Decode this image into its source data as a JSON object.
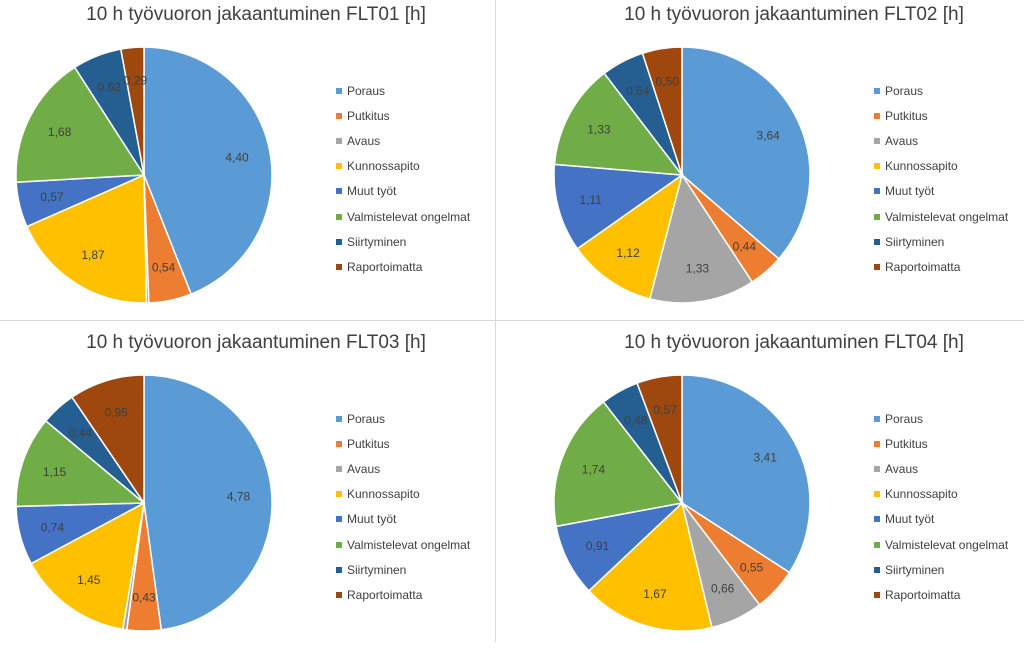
{
  "colors": {
    "slices": [
      "#5b9bd5",
      "#ed7d31",
      "#a5a5a5",
      "#ffc000",
      "#4472c4",
      "#70ad47",
      "#255e91",
      "#9e480e"
    ],
    "label_text": "#404040",
    "divider": "#d9d9d9"
  },
  "legend_labels": [
    "Poraus",
    "Putkitus",
    "Avaus",
    "Kunnossapito",
    "Muut työt",
    "Valmistelevat ongelmat",
    "Siirtyminen",
    "Raportoimatta"
  ],
  "chart_data": [
    {
      "type": "pie",
      "title": "10 h työvuoron jakaantuminen FLT01 [h]",
      "categories": [
        "Poraus",
        "Putkitus",
        "Avaus",
        "Kunnossapito",
        "Muut työt",
        "Valmistelevat ongelmat",
        "Siirtyminen",
        "Raportoimatta"
      ],
      "values": [
        4.4,
        0.54,
        0.03,
        1.87,
        0.57,
        1.68,
        0.62,
        0.29
      ],
      "data_labels": [
        "4,40",
        "0,54",
        "",
        "1,87",
        "0,57",
        "1,68",
        "0,62",
        "0,29"
      ],
      "legend": "right"
    },
    {
      "type": "pie",
      "title": "10 h työvuoron jakaantuminen FLT02 [h]",
      "categories": [
        "Poraus",
        "Putkitus",
        "Avaus",
        "Kunnossapito",
        "Muut työt",
        "Valmistelevat ongelmat",
        "Siirtyminen",
        "Raportoimatta"
      ],
      "values": [
        3.64,
        0.44,
        1.33,
        1.12,
        1.11,
        1.33,
        0.54,
        0.5
      ],
      "data_labels": [
        "3,64",
        "0,44",
        "1,33",
        "1,12",
        "1,11",
        "1,33",
        "0,54",
        "0,50"
      ],
      "legend": "right"
    },
    {
      "type": "pie",
      "title": "10 h työvuoron jakaantuminen FLT03 [h]",
      "categories": [
        "Poraus",
        "Putkitus",
        "Avaus",
        "Kunnossapito",
        "Muut työt",
        "Valmistelevat ongelmat",
        "Siirtyminen",
        "Raportoimatta"
      ],
      "values": [
        4.78,
        0.43,
        0.05,
        1.45,
        0.74,
        1.15,
        0.44,
        0.95
      ],
      "data_labels": [
        "4,78",
        "0,43",
        "",
        "1,45",
        "0,74",
        "1,15",
        "0,44",
        "0,95"
      ],
      "legend": "right"
    },
    {
      "type": "pie",
      "title": "10 h työvuoron jakaantuminen FLT04 [h]",
      "categories": [
        "Poraus",
        "Putkitus",
        "Avaus",
        "Kunnossapito",
        "Muut työt",
        "Valmistelevat ongelmat",
        "Siirtyminen",
        "Raportoimatta"
      ],
      "values": [
        3.41,
        0.55,
        0.66,
        1.67,
        0.91,
        1.74,
        0.48,
        0.57
      ],
      "data_labels": [
        "3,41",
        "0,55",
        "0,66",
        "1,67",
        "0,91",
        "1,74",
        "0,48",
        "0,57"
      ],
      "legend": "right"
    }
  ]
}
